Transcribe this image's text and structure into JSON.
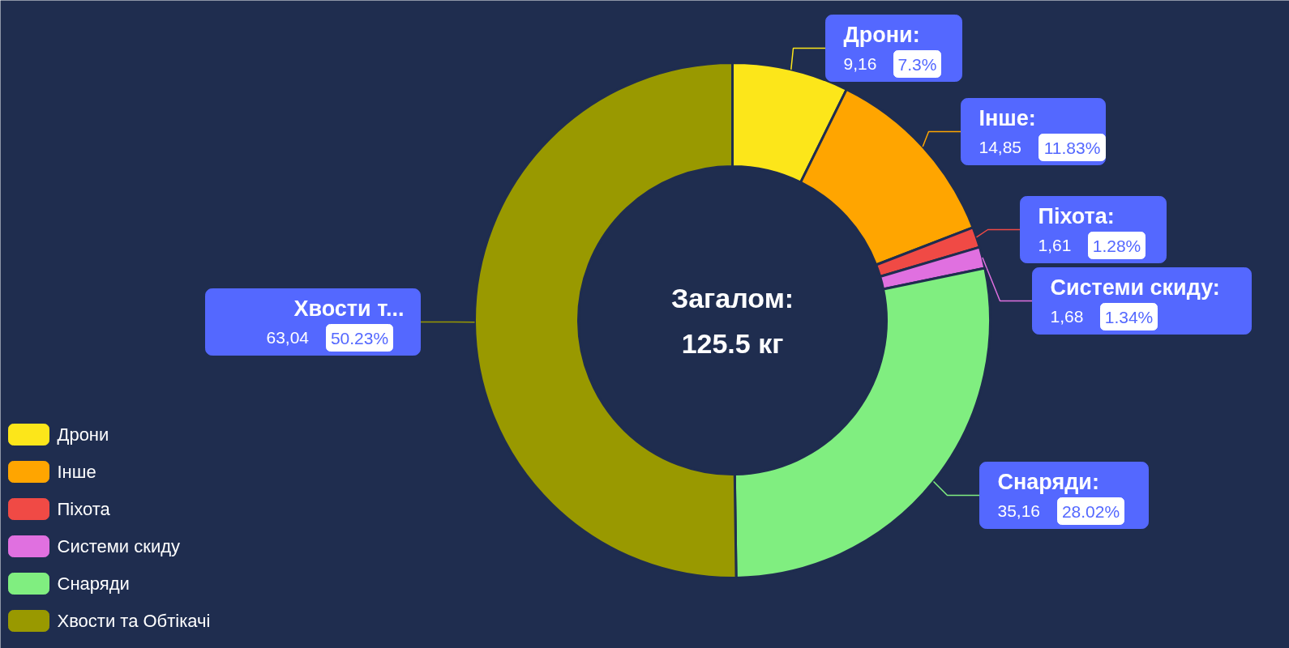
{
  "chart_data": {
    "type": "donut",
    "categories": [
      "Дрони",
      "Інше",
      "Піхота",
      "Системи скиду",
      "Снаряди",
      "Хвости та Обтікачі"
    ],
    "values": [
      9.16,
      14.85,
      1.61,
      1.68,
      35.16,
      63.04
    ],
    "colors": [
      "#fce61a",
      "#ffa500",
      "#f04a45",
      "#e070e0",
      "#80ee80",
      "#999900"
    ],
    "value_labels": [
      "9,16",
      "14,85",
      "1,61",
      "1,68",
      "35,16",
      "63,04"
    ],
    "annotations": [
      {
        "text": "Дрони:",
        "x": "Дрони"
      },
      {
        "text": "Інше:",
        "x": "Інше"
      },
      {
        "text": "Піхота:",
        "x": "Піхота"
      },
      {
        "text": "Системи скиду:",
        "x": "Системи скиду"
      },
      {
        "text": "Снаряди:",
        "x": "Снаряди"
      },
      {
        "text": "Хвости т...",
        "x": "Хвости та Обтікачі"
      },
      {
        "text": "7.3%",
        "x": "Дрони"
      },
      {
        "text": "11.83%",
        "x": "Інше"
      },
      {
        "text": "1.28%",
        "x": "Піхота"
      },
      {
        "text": "1.34%",
        "x": "Системи скиду"
      },
      {
        "text": "28.02%",
        "x": "Снаряди"
      },
      {
        "text": "50.23%",
        "x": "Хвости та Обтікачі"
      },
      "Загалом:",
      "125.5 кг"
    ],
    "legend": "bottom left"
  }
}
